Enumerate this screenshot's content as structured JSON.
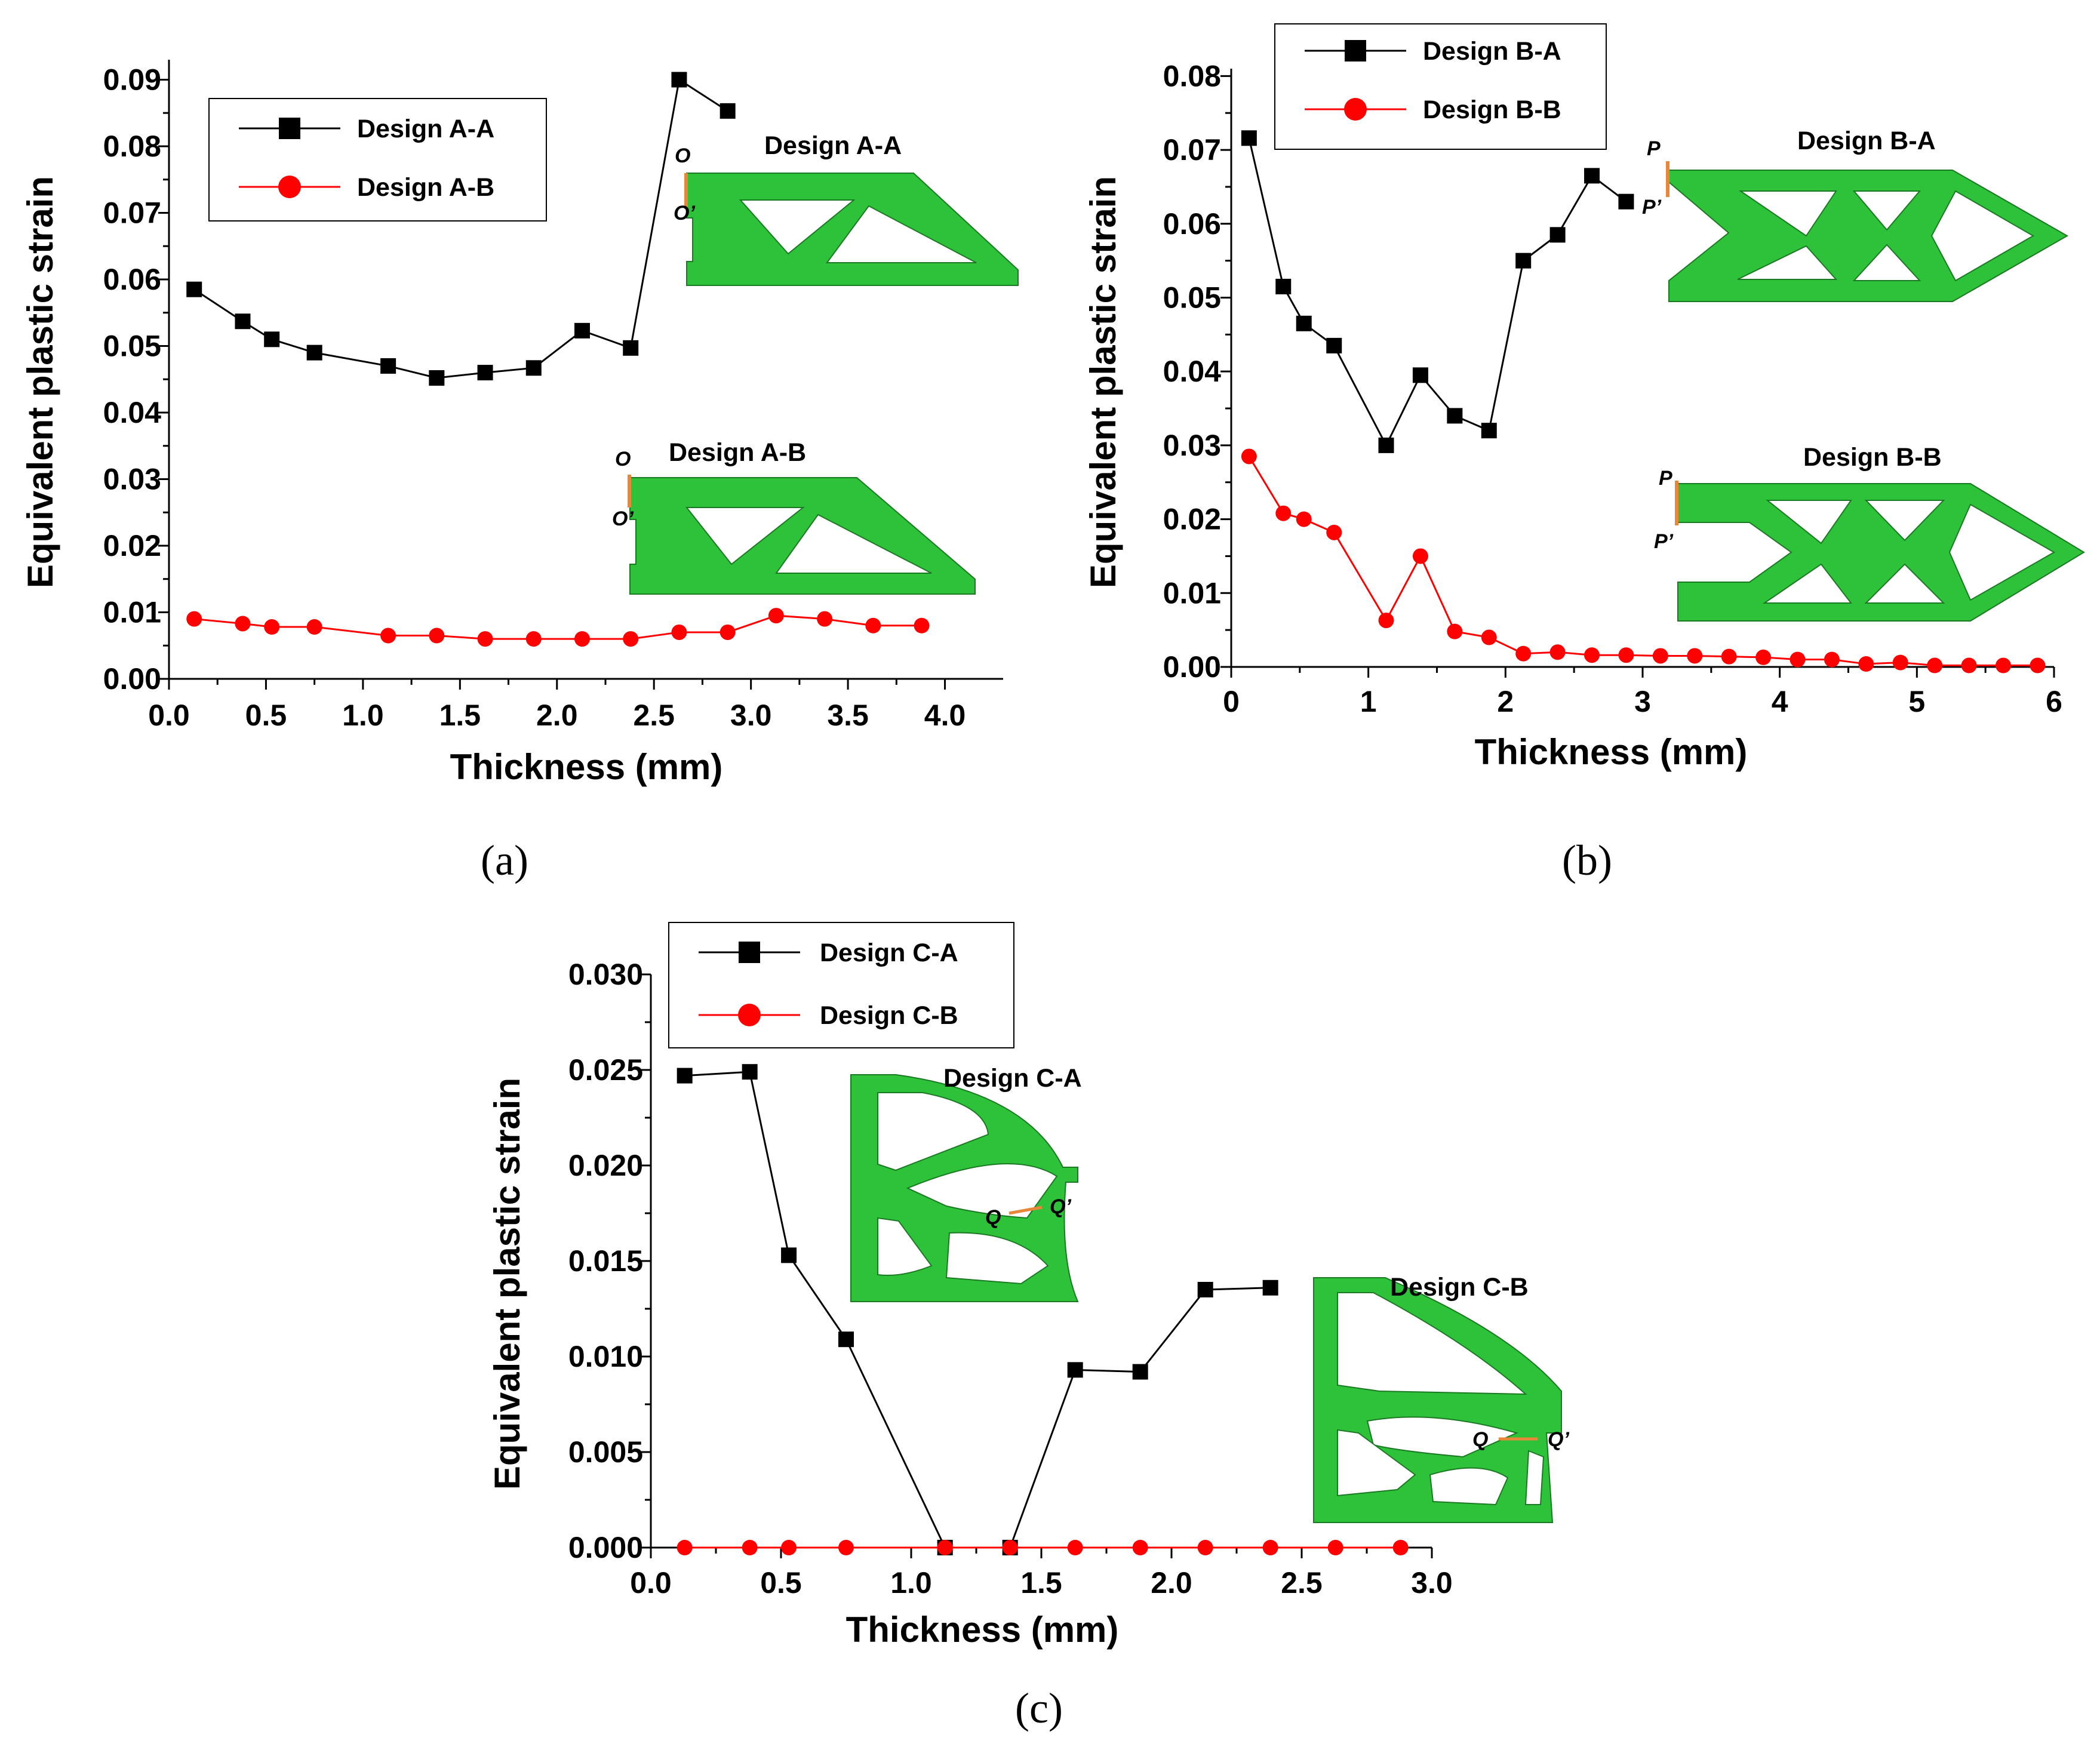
{
  "chart_data": [
    {
      "id": "a",
      "type": "line",
      "panel_label": "(a)",
      "xlabel": "Thickness (mm)",
      "ylabel": "Equivalent plastic strain",
      "xlim": [
        0,
        4.3
      ],
      "ylim": [
        0,
        0.093
      ],
      "xticks": [
        0.0,
        0.5,
        1.0,
        1.5,
        2.0,
        2.5,
        3.0,
        3.5,
        4.0
      ],
      "xtick_labels": [
        "0.0",
        "0.5",
        "1.0",
        "1.5",
        "2.0",
        "2.5",
        "3.0",
        "3.5",
        "4.0"
      ],
      "yticks": [
        0.0,
        0.01,
        0.02,
        0.03,
        0.04,
        0.05,
        0.06,
        0.07,
        0.08,
        0.09
      ],
      "ytick_labels": [
        "0.00",
        "0.01",
        "0.02",
        "0.03",
        "0.04",
        "0.05",
        "0.06",
        "0.07",
        "0.08",
        "0.09"
      ],
      "legend_position": "top-left",
      "series": [
        {
          "name": "Design A-A",
          "color": "#000000",
          "marker": "square",
          "x": [
            0.13,
            0.38,
            0.53,
            0.75,
            1.13,
            1.38,
            1.63,
            1.88,
            2.13,
            2.38,
            2.63,
            2.88
          ],
          "values": [
            0.0585,
            0.0537,
            0.051,
            0.049,
            0.047,
            0.0452,
            0.046,
            0.0467,
            0.0523,
            0.0497,
            0.09,
            0.0853
          ]
        },
        {
          "name": "Design A-B",
          "color": "#ff0000",
          "marker": "circle",
          "x": [
            0.13,
            0.38,
            0.53,
            0.75,
            1.13,
            1.38,
            1.63,
            1.88,
            2.13,
            2.38,
            2.63,
            2.88,
            3.13,
            3.38,
            3.63,
            3.88
          ],
          "values": [
            0.009,
            0.0083,
            0.0078,
            0.0078,
            0.0065,
            0.0065,
            0.006,
            0.006,
            0.006,
            0.006,
            0.007,
            0.007,
            0.0095,
            0.009,
            0.008,
            0.008
          ]
        }
      ],
      "insets": [
        {
          "title": "Design A-A",
          "point_top": "O",
          "point_bottom": "O’"
        },
        {
          "title": "Design A-B",
          "point_top": "O",
          "point_bottom": "O’"
        }
      ]
    },
    {
      "id": "b",
      "type": "line",
      "panel_label": "(b)",
      "xlabel": "Thickness (mm)",
      "ylabel": "Equivalent plastic strain",
      "xlim": [
        0,
        6
      ],
      "ylim": [
        0,
        0.081
      ],
      "xticks": [
        0,
        1,
        2,
        3,
        4,
        5,
        6
      ],
      "xtick_labels": [
        "0",
        "1",
        "2",
        "3",
        "4",
        "5",
        "6"
      ],
      "yticks": [
        0.0,
        0.01,
        0.02,
        0.03,
        0.04,
        0.05,
        0.06,
        0.07,
        0.08
      ],
      "ytick_labels": [
        "0.00",
        "0.01",
        "0.02",
        "0.03",
        "0.04",
        "0.05",
        "0.06",
        "0.07",
        "0.08"
      ],
      "legend_position": "top-left",
      "series": [
        {
          "name": "Design B-A",
          "color": "#000000",
          "marker": "square",
          "x": [
            0.13,
            0.38,
            0.53,
            0.75,
            1.13,
            1.38,
            1.63,
            1.88,
            2.13,
            2.38,
            2.63,
            2.88
          ],
          "values": [
            0.0716,
            0.0515,
            0.0465,
            0.0435,
            0.03,
            0.0395,
            0.034,
            0.032,
            0.055,
            0.0585,
            0.0665,
            0.063
          ]
        },
        {
          "name": "Design B-B",
          "color": "#ff0000",
          "marker": "circle",
          "x": [
            0.13,
            0.38,
            0.53,
            0.75,
            1.13,
            1.38,
            1.63,
            1.88,
            2.13,
            2.38,
            2.63,
            2.88,
            3.13,
            3.38,
            3.63,
            3.88,
            4.13,
            4.38,
            4.63,
            4.88,
            5.13,
            5.38,
            5.63,
            5.88
          ],
          "values": [
            0.0285,
            0.0208,
            0.02,
            0.0182,
            0.0063,
            0.015,
            0.0048,
            0.004,
            0.0018,
            0.002,
            0.0016,
            0.0016,
            0.0015,
            0.0015,
            0.0014,
            0.0013,
            0.001,
            0.001,
            0.0004,
            0.0006,
            0.0002,
            0.0002,
            0.0002,
            0.0002
          ]
        }
      ],
      "insets": [
        {
          "title": "Design B-A",
          "point_top": "P",
          "point_bottom": "P’"
        },
        {
          "title": "Design B-B",
          "point_top": "P",
          "point_bottom": "P’"
        }
      ]
    },
    {
      "id": "c",
      "type": "line",
      "panel_label": "(c)",
      "xlabel": "Thickness (mm)",
      "ylabel": "Equivalent plastic strain",
      "xlim": [
        0,
        3.0
      ],
      "ylim": [
        0,
        0.03
      ],
      "xticks": [
        0.0,
        0.5,
        1.0,
        1.5,
        2.0,
        2.5,
        3.0
      ],
      "xtick_labels": [
        "0.0",
        "0.5",
        "1.0",
        "1.5",
        "2.0",
        "2.5",
        "3.0"
      ],
      "yticks": [
        0.0,
        0.005,
        0.01,
        0.015,
        0.02,
        0.025,
        0.03
      ],
      "ytick_labels": [
        "0.000",
        "0.005",
        "0.010",
        "0.015",
        "0.020",
        "0.025",
        "0.030"
      ],
      "legend_position": "top-left",
      "series": [
        {
          "name": "Design C-A",
          "color": "#000000",
          "marker": "square",
          "x": [
            0.13,
            0.38,
            0.53,
            0.75,
            1.13,
            1.38,
            1.63,
            1.88,
            2.13,
            2.38
          ],
          "values": [
            0.0247,
            0.0249,
            0.0153,
            0.0109,
            0.0,
            0.0,
            0.0093,
            0.0092,
            0.0135,
            0.0136
          ]
        },
        {
          "name": "Design C-B",
          "color": "#ff0000",
          "marker": "circle",
          "x": [
            0.13,
            0.38,
            0.53,
            0.75,
            1.13,
            1.38,
            1.63,
            1.88,
            2.13,
            2.38,
            2.63,
            2.88
          ],
          "values": [
            0.0,
            0.0,
            0.0,
            0.0,
            0.0,
            0.0,
            0.0,
            0.0,
            0.0,
            0.0,
            0.0,
            0.0
          ]
        }
      ],
      "insets": [
        {
          "title": "Design C-A",
          "point_left": "Q",
          "point_right": "Q’"
        },
        {
          "title": "Design C-B",
          "point_left": "Q",
          "point_right": "Q’"
        }
      ]
    }
  ]
}
